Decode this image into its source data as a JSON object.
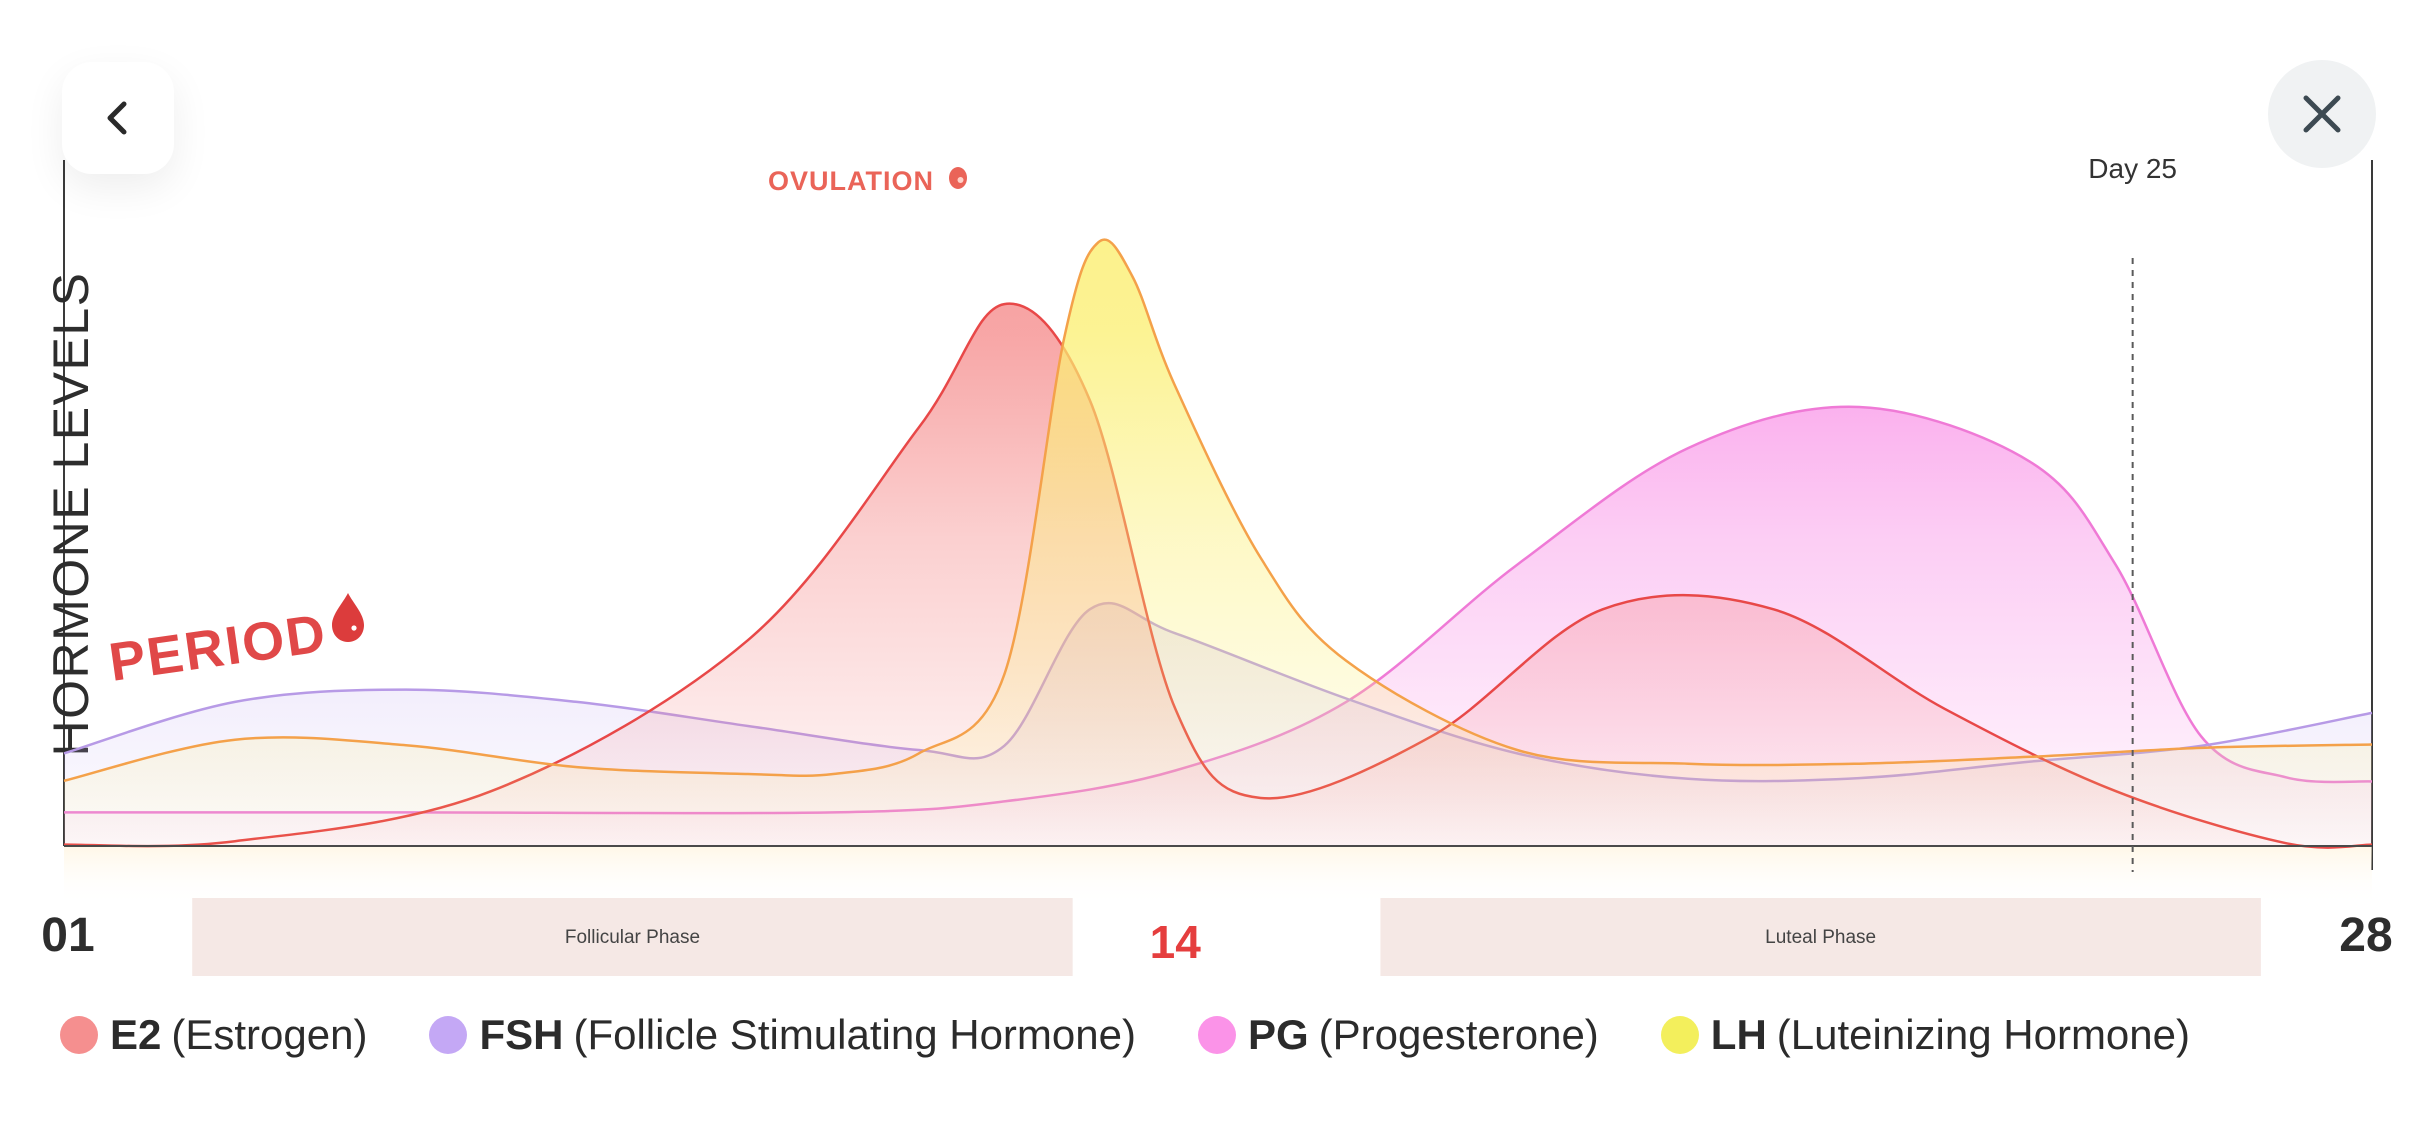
{
  "nav": {
    "back_icon": "chevron-left-icon",
    "close_icon": "close-icon"
  },
  "chart_data": {
    "type": "area",
    "ylabel": "HORMONE LEVELS",
    "xlim": [
      1,
      28
    ],
    "ylim": [
      0,
      100
    ],
    "x_ticks": [
      "01",
      "14",
      "28"
    ],
    "highlight_tick": "14",
    "annotations": {
      "period": "PERIOD",
      "ovulation": "OVULATION",
      "marker": "Day 25",
      "marker_day": 25.2
    },
    "phases": [
      {
        "label": "Follicular Phase",
        "start": 2.5,
        "end": 12.8
      },
      {
        "label": "Luteal Phase",
        "start": 16.4,
        "end": 26.7
      }
    ],
    "series": [
      {
        "name": "PG",
        "key": "pg",
        "color": "#ef7ad6",
        "fill": "#f884e4",
        "points": [
          [
            1,
            4.9
          ],
          [
            5,
            4.9
          ],
          [
            10,
            4.9
          ],
          [
            12,
            6.5
          ],
          [
            14,
            11
          ],
          [
            16,
            21
          ],
          [
            18,
            41
          ],
          [
            20,
            58
          ],
          [
            22,
            64
          ],
          [
            24,
            56
          ],
          [
            25,
            41
          ],
          [
            26,
            16
          ],
          [
            27,
            10
          ],
          [
            28,
            9.4
          ]
        ]
      },
      {
        "name": "FSH",
        "key": "fsh",
        "color": "#b79ae6",
        "fill": "#c8b5f3",
        "points": [
          [
            1,
            13.5
          ],
          [
            3,
            21
          ],
          [
            5,
            22.8
          ],
          [
            7,
            21
          ],
          [
            9,
            17.5
          ],
          [
            11,
            14
          ],
          [
            12,
            14.6
          ],
          [
            13,
            34.5
          ],
          [
            14,
            31
          ],
          [
            16,
            21.5
          ],
          [
            18,
            13.5
          ],
          [
            20,
            9.8
          ],
          [
            22,
            9.9
          ],
          [
            24,
            12.3
          ],
          [
            26,
            14.6
          ],
          [
            28,
            19.4
          ]
        ]
      },
      {
        "name": "E2",
        "key": "e2",
        "color": "#e84848",
        "fill": "#f58a8a",
        "points": [
          [
            1,
            0.2
          ],
          [
            3,
            0.7
          ],
          [
            6,
            8
          ],
          [
            9,
            30
          ],
          [
            11,
            61
          ],
          [
            12,
            79
          ],
          [
            13,
            65
          ],
          [
            14,
            20
          ],
          [
            15,
            7
          ],
          [
            17,
            16
          ],
          [
            19,
            34.5
          ],
          [
            21,
            34.5
          ],
          [
            23,
            20
          ],
          [
            25,
            8
          ],
          [
            27,
            0.4
          ],
          [
            28,
            0.2
          ]
        ]
      },
      {
        "name": "LH",
        "key": "lh",
        "color": "#f4a14a",
        "fill": "#fbef72",
        "points": [
          [
            1,
            9.5
          ],
          [
            3,
            15.5
          ],
          [
            5,
            14.7
          ],
          [
            7,
            11.5
          ],
          [
            9,
            10.5
          ],
          [
            10,
            10.5
          ],
          [
            11,
            13.5
          ],
          [
            12,
            25
          ],
          [
            12.7,
            74
          ],
          [
            13.1,
            88
          ],
          [
            13.5,
            83
          ],
          [
            14,
            67
          ],
          [
            15,
            42
          ],
          [
            16,
            27
          ],
          [
            18,
            14
          ],
          [
            20,
            12
          ],
          [
            22,
            12
          ],
          [
            24,
            13
          ],
          [
            26,
            14.3
          ],
          [
            28,
            14.8
          ]
        ]
      }
    ]
  },
  "legend": [
    {
      "abbr": "E2",
      "full": "(Estrogen)",
      "color": "#f58f8f"
    },
    {
      "abbr": "FSH",
      "full": "(Follicle Stimulating Hormone)",
      "color": "#c4a8f5"
    },
    {
      "abbr": "PG",
      "full": "(Progesterone)",
      "color": "#fb93e8"
    },
    {
      "abbr": "LH",
      "full": "(Luteinizing Hormone)",
      "color": "#f3ef5c"
    }
  ]
}
